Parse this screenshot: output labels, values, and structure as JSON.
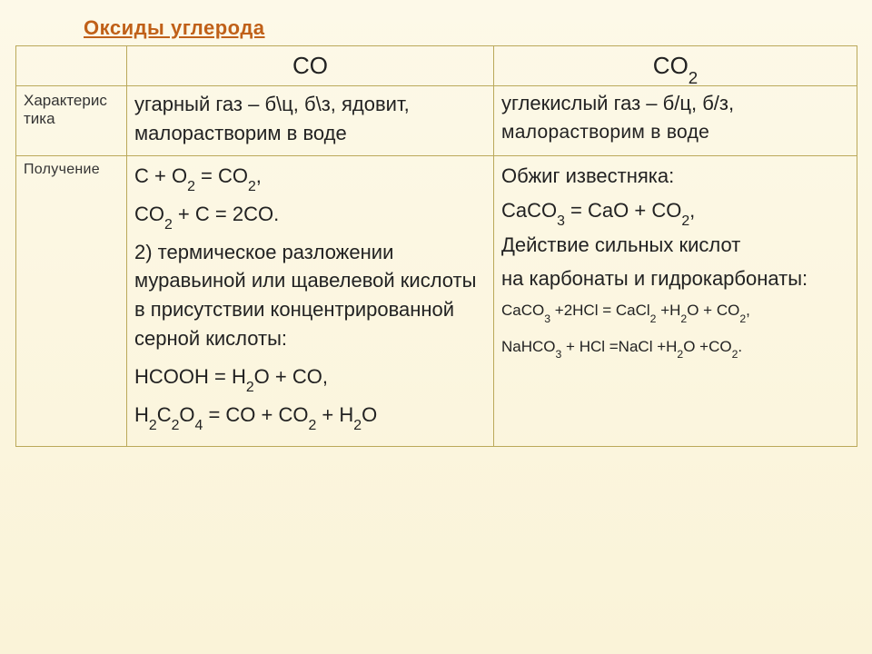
{
  "slide": {
    "title": "Оксиды углерода",
    "background_top": "#fdf9e8",
    "background_bottom": "#faf3d8",
    "title_color": "#c06018",
    "border_color": "#bba95a"
  },
  "table": {
    "header": {
      "blank": "",
      "co": "CO",
      "co2_html": "CO<sub>2</sub>"
    },
    "rows": {
      "char": {
        "label": "Характерис\nтика",
        "co": " угарный газ – б\\ц, б\\з, ядовит, малорастворим в воде",
        "co2_line1": "углекислый газ – б/ц, б/з,",
        "co2_line2": "малорастворим в воде"
      },
      "prod": {
        "label": "Получение",
        "co": {
          "eq1_html": "C + O<sub>2</sub> = CO<sub>2</sub>,",
          "eq2_html": "CO<sub>2</sub> + C = 2CO.",
          "text2": "2) термическое разложении муравьиной или щавелевой кислоты в присутствии концентрированной серной кислоты:",
          "eq3_html": "HCOOH = H<sub>2</sub>O + CO,",
          "eq4_html": "H<sub>2</sub>C<sub>2</sub>O<sub>4</sub> = CO + CO<sub>2</sub> + H<sub>2</sub>O"
        },
        "co2": {
          "t1": "Обжиг известняка:",
          "eq1_html": "CaCO<sub>3</sub> = CaO + CO<sub>2</sub>,",
          "t2": "Действие сильных кислот",
          "t3": " на карбонаты и гидрокарбонаты:",
          "eq2_html": "CaCO<sub>3</sub> +2HCl = CaCl<sub>2</sub> +H<sub>2</sub>O + CO<sub>2</sub>,",
          "eq3_html": "NaHCO<sub>3</sub> + HCl =NaCl +H<sub>2</sub>O +CO<sub>2</sub>."
        }
      }
    }
  }
}
